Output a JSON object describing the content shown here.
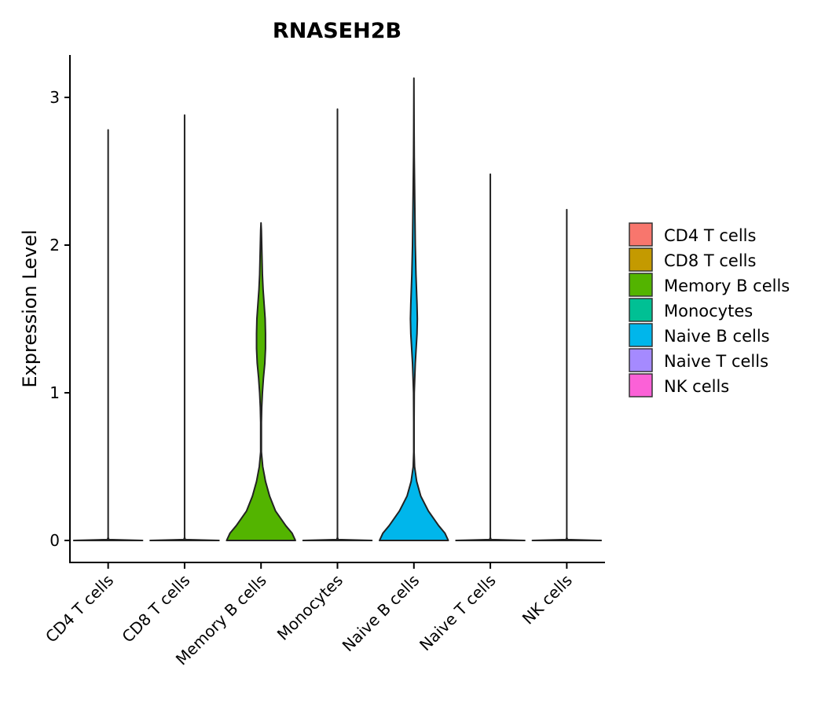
{
  "chart_data": {
    "type": "violin",
    "title": "RNASEH2B",
    "xlabel": "",
    "ylabel": "Expression Level",
    "ylim": [
      -0.15,
      3.3
    ],
    "yticks": [
      0,
      1,
      2,
      3
    ],
    "yticks_labels": [
      "0",
      "1",
      "2",
      "3"
    ],
    "legend_placement": "right",
    "categories": [
      "CD4 T cells",
      "CD8 T cells",
      "Memory B cells",
      "Monocytes",
      "Naive B cells",
      "Naive T cells",
      "NK cells"
    ],
    "colors": [
      "#F8766D",
      "#C49A00",
      "#53B400",
      "#00C094",
      "#00B6EB",
      "#A58AFF",
      "#FB61D7"
    ],
    "violins": [
      {
        "category": "CD4 T cells",
        "max": 2.78,
        "profile": [
          [
            0,
            1.0
          ],
          [
            0.006,
            0.02
          ],
          [
            0.02,
            0.0
          ],
          [
            2.78,
            0.0
          ]
        ]
      },
      {
        "category": "CD8 T cells",
        "max": 2.88,
        "profile": [
          [
            0,
            1.0
          ],
          [
            0.006,
            0.02
          ],
          [
            0.02,
            0.0
          ],
          [
            2.88,
            0.0
          ]
        ]
      },
      {
        "category": "Memory B cells",
        "max": 2.15,
        "profile": [
          [
            0,
            1.0
          ],
          [
            0.05,
            0.9
          ],
          [
            0.1,
            0.72
          ],
          [
            0.2,
            0.42
          ],
          [
            0.3,
            0.25
          ],
          [
            0.4,
            0.13
          ],
          [
            0.5,
            0.05
          ],
          [
            0.6,
            0.01
          ],
          [
            0.8,
            0.01
          ],
          [
            0.9,
            0.02
          ],
          [
            1.0,
            0.04
          ],
          [
            1.1,
            0.07
          ],
          [
            1.2,
            0.11
          ],
          [
            1.3,
            0.13
          ],
          [
            1.4,
            0.13
          ],
          [
            1.5,
            0.12
          ],
          [
            1.6,
            0.09
          ],
          [
            1.7,
            0.06
          ],
          [
            1.8,
            0.04
          ],
          [
            1.9,
            0.03
          ],
          [
            2.0,
            0.02
          ],
          [
            2.1,
            0.01
          ],
          [
            2.15,
            0.0
          ]
        ]
      },
      {
        "category": "Monocytes",
        "max": 2.92,
        "profile": [
          [
            0,
            1.0
          ],
          [
            0.006,
            0.02
          ],
          [
            0.02,
            0.0
          ],
          [
            2.92,
            0.0
          ]
        ]
      },
      {
        "category": "Naive B cells",
        "max": 3.13,
        "profile": [
          [
            0,
            1.0
          ],
          [
            0.05,
            0.9
          ],
          [
            0.1,
            0.72
          ],
          [
            0.2,
            0.42
          ],
          [
            0.3,
            0.2
          ],
          [
            0.4,
            0.08
          ],
          [
            0.5,
            0.02
          ],
          [
            0.6,
            0.005
          ],
          [
            0.8,
            0.005
          ],
          [
            1.0,
            0.01
          ],
          [
            1.2,
            0.04
          ],
          [
            1.4,
            0.09
          ],
          [
            1.5,
            0.1
          ],
          [
            1.6,
            0.09
          ],
          [
            1.8,
            0.06
          ],
          [
            2.0,
            0.04
          ],
          [
            2.2,
            0.03
          ],
          [
            2.4,
            0.02
          ],
          [
            2.6,
            0.01
          ],
          [
            2.8,
            0.005
          ],
          [
            3.13,
            0.0
          ]
        ]
      },
      {
        "category": "Naive T cells",
        "max": 2.48,
        "profile": [
          [
            0,
            1.0
          ],
          [
            0.006,
            0.02
          ],
          [
            0.02,
            0.0
          ],
          [
            2.48,
            0.0
          ]
        ]
      },
      {
        "category": "NK cells",
        "max": 2.24,
        "profile": [
          [
            0,
            1.0
          ],
          [
            0.006,
            0.02
          ],
          [
            0.02,
            0.0
          ],
          [
            2.24,
            0.0
          ]
        ]
      }
    ],
    "legend": [
      "CD4 T cells",
      "CD8 T cells",
      "Memory B cells",
      "Monocytes",
      "Naive B cells",
      "Naive T cells",
      "NK cells"
    ]
  }
}
